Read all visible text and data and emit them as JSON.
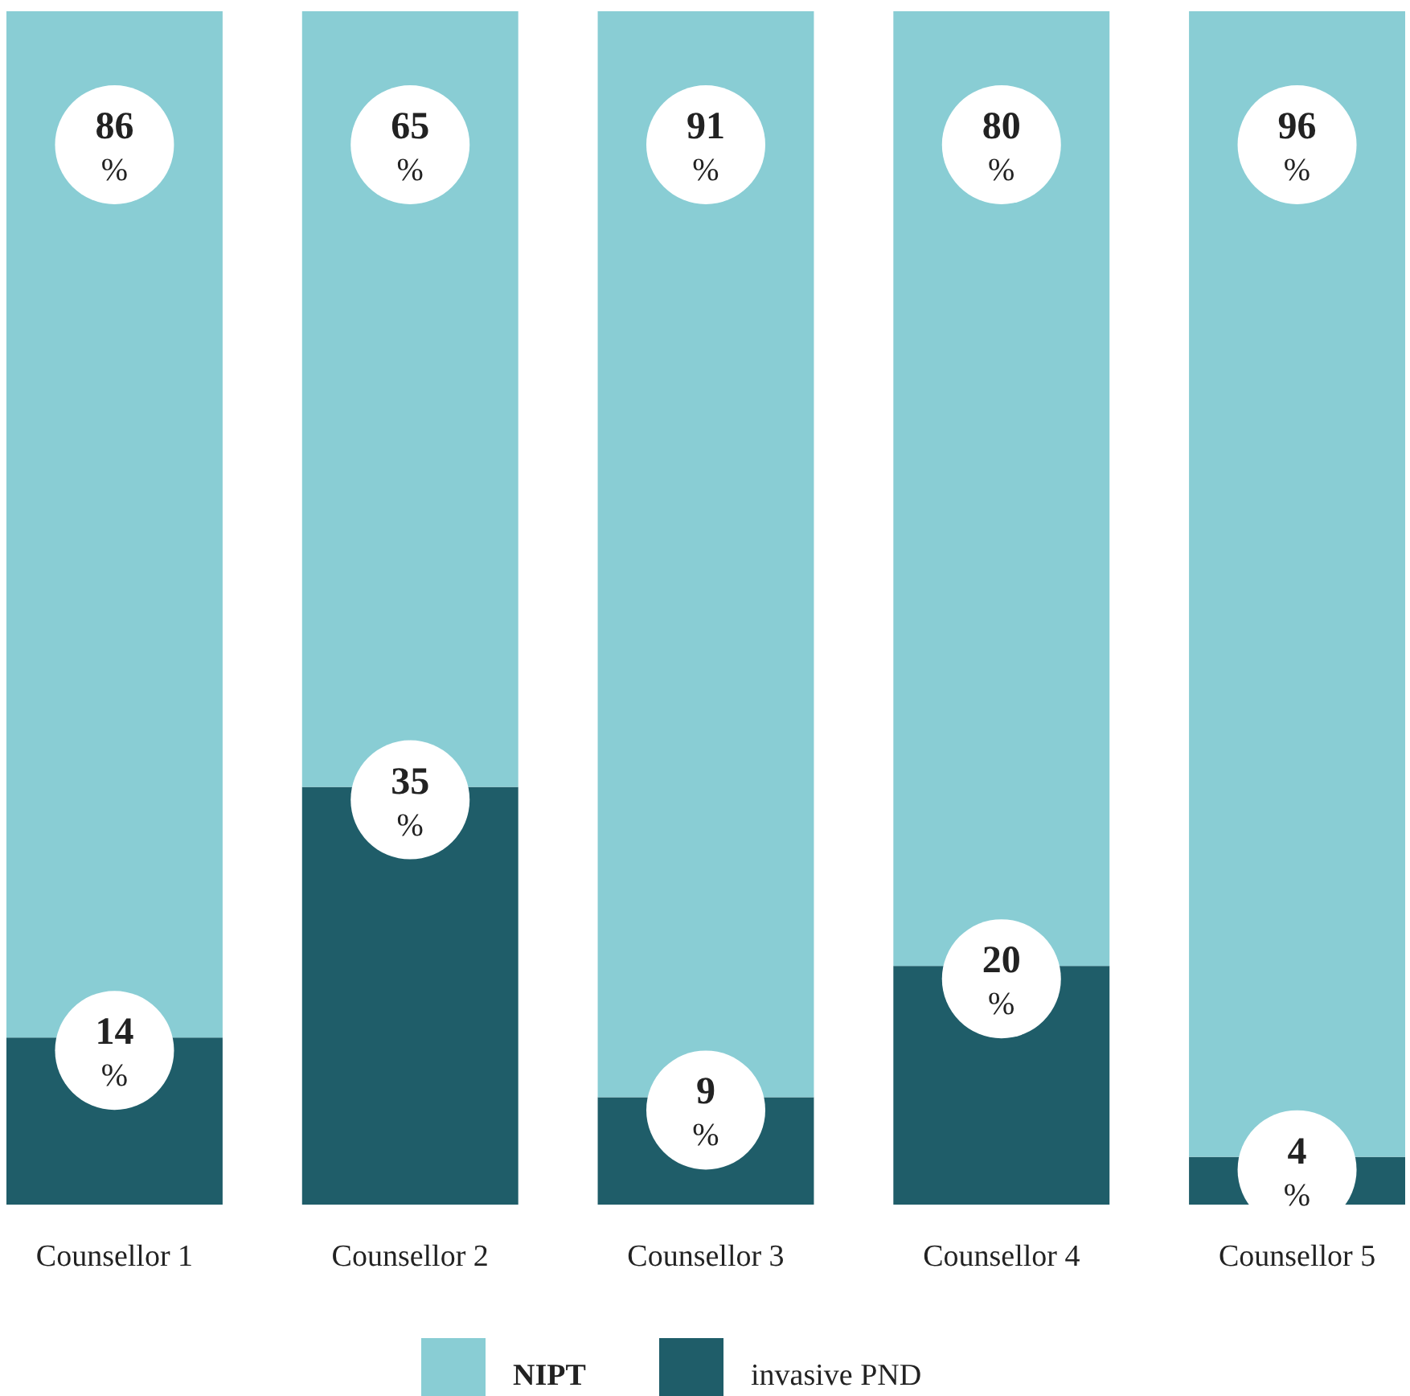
{
  "chart_data": {
    "type": "bar",
    "stacked": true,
    "categories": [
      "Counsellor 1",
      "Counsellor 2",
      "Counsellor 3",
      "Counsellor 4",
      "Counsellor 5"
    ],
    "series": [
      {
        "name": "invasive PND",
        "color": "#1f5d69",
        "values": [
          14,
          35,
          9,
          20,
          4
        ],
        "value_labels": [
          "14 %",
          "35 %",
          "9 %",
          "20 %",
          "4 %"
        ]
      },
      {
        "name": "NIPT",
        "color": "#89cdd4",
        "values": [
          86,
          65,
          91,
          80,
          96
        ],
        "value_labels": [
          "86 %",
          "65 %",
          "91 %",
          "80 %",
          "96 %"
        ]
      }
    ],
    "legend": "bottom"
  }
}
